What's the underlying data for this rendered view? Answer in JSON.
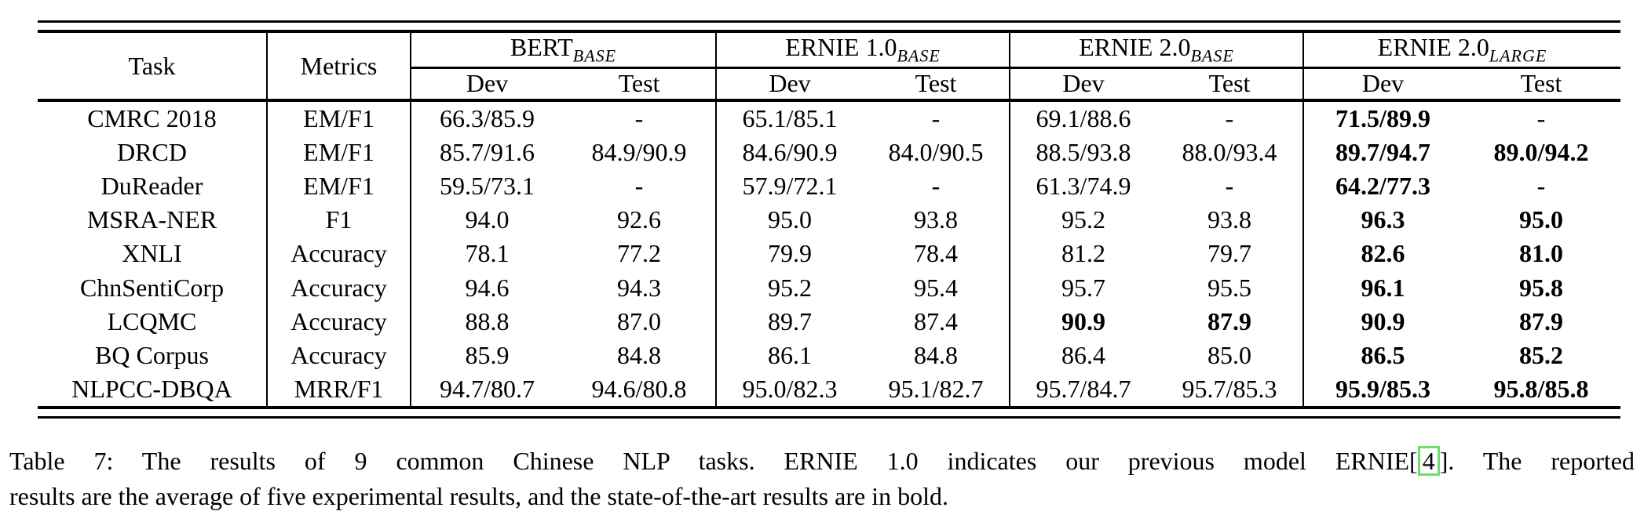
{
  "table": {
    "headers": {
      "task": "Task",
      "metrics": "Metrics",
      "dev": "Dev",
      "test": "Test"
    },
    "groups": [
      {
        "name": "BERT",
        "size": "BASE"
      },
      {
        "name": "ERNIE 1.0",
        "size": "BASE"
      },
      {
        "name": "ERNIE 2.0",
        "size": "BASE"
      },
      {
        "name": "ERNIE 2.0",
        "size": "LARGE"
      }
    ],
    "rows": [
      {
        "task": "CMRC 2018",
        "metric": "EM/F1",
        "values": [
          "66.3/85.9",
          "-",
          "65.1/85.1",
          "-",
          "69.1/88.6",
          "-",
          "71.5/89.9",
          "-"
        ],
        "bold": [
          false,
          false,
          false,
          false,
          false,
          false,
          true,
          false
        ]
      },
      {
        "task": "DRCD",
        "metric": "EM/F1",
        "values": [
          "85.7/91.6",
          "84.9/90.9",
          "84.6/90.9",
          "84.0/90.5",
          "88.5/93.8",
          "88.0/93.4",
          "89.7/94.7",
          "89.0/94.2"
        ],
        "bold": [
          false,
          false,
          false,
          false,
          false,
          false,
          true,
          true
        ]
      },
      {
        "task": "DuReader",
        "metric": "EM/F1",
        "values": [
          "59.5/73.1",
          "-",
          "57.9/72.1",
          "-",
          "61.3/74.9",
          "-",
          "64.2/77.3",
          "-"
        ],
        "bold": [
          false,
          false,
          false,
          false,
          false,
          false,
          true,
          false
        ]
      },
      {
        "task": "MSRA-NER",
        "metric": "F1",
        "values": [
          "94.0",
          "92.6",
          "95.0",
          "93.8",
          "95.2",
          "93.8",
          "96.3",
          "95.0"
        ],
        "bold": [
          false,
          false,
          false,
          false,
          false,
          false,
          true,
          true
        ]
      },
      {
        "task": "XNLI",
        "metric": "Accuracy",
        "values": [
          "78.1",
          "77.2",
          "79.9",
          "78.4",
          "81.2",
          "79.7",
          "82.6",
          "81.0"
        ],
        "bold": [
          false,
          false,
          false,
          false,
          false,
          false,
          true,
          true
        ]
      },
      {
        "task": "ChnSentiCorp",
        "metric": "Accuracy",
        "values": [
          "94.6",
          "94.3",
          "95.2",
          "95.4",
          "95.7",
          "95.5",
          "96.1",
          "95.8"
        ],
        "bold": [
          false,
          false,
          false,
          false,
          false,
          false,
          true,
          true
        ]
      },
      {
        "task": "LCQMC",
        "metric": "Accuracy",
        "values": [
          "88.8",
          "87.0",
          "89.7",
          "87.4",
          "90.9",
          "87.9",
          "90.9",
          "87.9"
        ],
        "bold": [
          false,
          false,
          false,
          false,
          true,
          true,
          true,
          true
        ]
      },
      {
        "task": "BQ Corpus",
        "metric": "Accuracy",
        "values": [
          "85.9",
          "84.8",
          "86.1",
          "84.8",
          "86.4",
          "85.0",
          "86.5",
          "85.2"
        ],
        "bold": [
          false,
          false,
          false,
          false,
          false,
          false,
          true,
          true
        ]
      },
      {
        "task": "NLPCC-DBQA",
        "metric": "MRR/F1",
        "values": [
          "94.7/80.7",
          "94.6/80.8",
          "95.0/82.3",
          "95.1/82.7",
          "95.7/84.7",
          "95.7/85.3",
          "95.9/85.3",
          "95.8/85.8"
        ],
        "bold": [
          false,
          false,
          false,
          false,
          false,
          false,
          true,
          true
        ]
      }
    ]
  },
  "caption": {
    "line1_before": "Table 7: The results of 9 common Chinese NLP tasks. ERNIE 1.0 indicates our previous model ERNIE[",
    "citation": "4",
    "line1_after": "]. The reported",
    "line2": "results are the average of five experimental results, and the state-of-the-art results are in bold.",
    "citation_box_color": "#6fdc6f"
  }
}
